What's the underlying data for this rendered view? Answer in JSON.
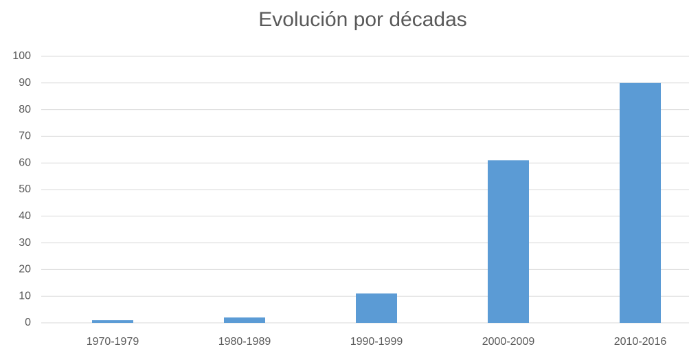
{
  "chart_data": {
    "type": "bar",
    "title": "Evolución por décadas",
    "categories": [
      "1970-1979",
      "1980-1989",
      "1990-1999",
      "2000-2009",
      "2010-2016"
    ],
    "values": [
      1,
      2,
      11,
      61,
      90
    ],
    "color": "#5b9bd5",
    "ylim": [
      0,
      100
    ],
    "yticks": [
      0,
      10,
      20,
      30,
      40,
      50,
      60,
      70,
      80,
      90,
      100
    ],
    "grid": true
  }
}
